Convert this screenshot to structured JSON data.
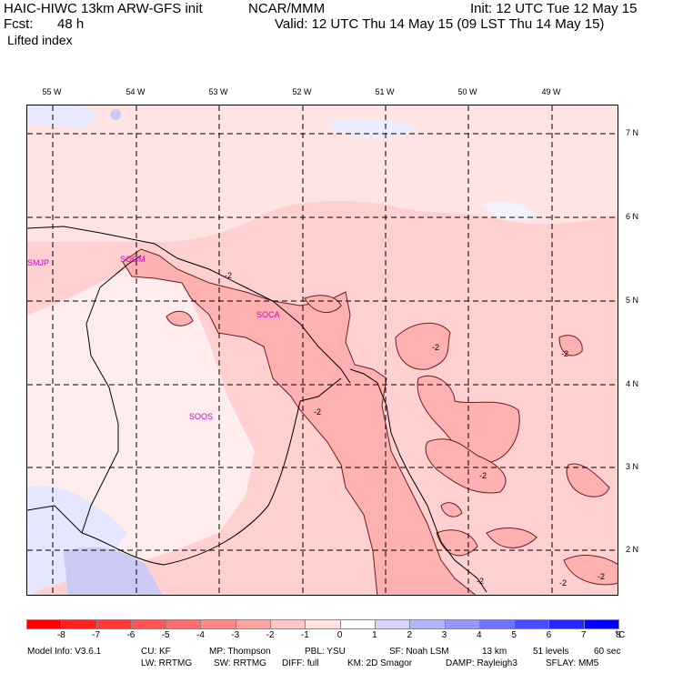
{
  "header": {
    "model_title": "HAIC-HIWC 13km ARW-GFS init",
    "org": "NCAR/MMM",
    "init_text": "Init: 12 UTC Tue 12 May 15",
    "fcst_label": "Fcst:",
    "fcst_value": "48 h",
    "valid_text": "Valid: 12 UTC Thu 14 May 15 (09 LST Thu 14 May 15)",
    "field_name": "Lifted index"
  },
  "map": {
    "longitude_labels": [
      "55 W",
      "54 W",
      "53 W",
      "52 W",
      "51 W",
      "50 W",
      "49 W"
    ],
    "latitude_labels": [
      "7 N",
      "6 N",
      "5 N",
      "4 N",
      "3 N",
      "2 N"
    ],
    "stations": [
      "SMJP",
      "SOGM",
      "SOCA",
      "SOOS"
    ],
    "contour_labels": [
      "-2",
      "-2",
      "-2",
      "-2",
      "-2",
      "-2",
      "-2",
      "-2"
    ],
    "colors": {
      "very_light_pink": "#ffecec",
      "light_pink": "#ffd0d0",
      "pink": "#ffb0b0",
      "pale_blue": "#e6e6ff",
      "light_blue": "#cacaf5"
    }
  },
  "colorbar": {
    "tick_labels": [
      "-8",
      "-7",
      "-6",
      "-5",
      "-4",
      "-3",
      "-2",
      "-1",
      "0",
      "1",
      "2",
      "3",
      "4",
      "5",
      "6",
      "7",
      "8"
    ],
    "unit": "°C",
    "colors": [
      "#ff0000",
      "#ff2222",
      "#ff3a3a",
      "#ff5555",
      "#ff6e6e",
      "#ff8888",
      "#ffa4a4",
      "#ffc4c4",
      "#ffe2e2",
      "#ffffff",
      "#d6d6ff",
      "#b6b6ff",
      "#9696ff",
      "#7070ff",
      "#4c4cff",
      "#2626ff",
      "#0000ff"
    ]
  },
  "footer": {
    "line1": [
      "Model Info: V3.6.1",
      "CU: KF",
      "MP: Thompson",
      "PBL: YSU",
      "SF: Noah LSM",
      "13 km",
      "51 levels",
      "60 sec"
    ],
    "line2": [
      "LW: RRTMG",
      "SW: RRTMG",
      "DIFF: full",
      "KM: 2D Smagor",
      "DAMP: Rayleigh3",
      "SFLAY: MM5"
    ]
  }
}
